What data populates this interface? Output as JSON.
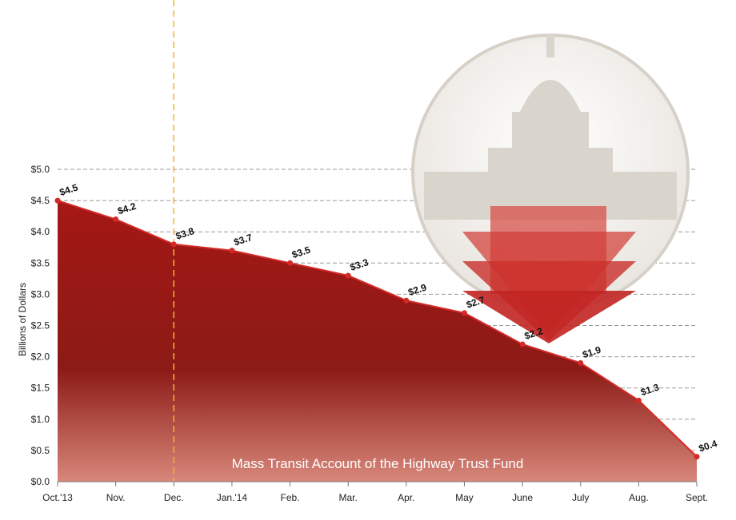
{
  "chart_data": {
    "type": "area",
    "title": "",
    "annotation": "Mass Transit Account of the Highway Trust Fund",
    "xlabel": "",
    "ylabel": "Billions of Dollars",
    "categories": [
      "Oct.'13",
      "Nov.",
      "Dec.",
      "Jan.'14",
      "Feb.",
      "Mar.",
      "Apr.",
      "May",
      "June",
      "July",
      "Aug.",
      "Sept."
    ],
    "values": [
      4.5,
      4.2,
      3.8,
      3.7,
      3.5,
      3.3,
      2.9,
      2.7,
      2.2,
      1.9,
      1.3,
      0.4
    ],
    "data_labels": [
      "$4.5",
      "$4.2",
      "$3.8",
      "$3.7",
      "$3.5",
      "$3.3",
      "$2.9",
      "$2.7",
      "$2.2",
      "$1.9",
      "$1.3",
      "$0.4"
    ],
    "ylim": [
      0,
      5
    ],
    "yticks": [
      "$0.0",
      "$0.5",
      "$1.0",
      "$1.5",
      "$2.0",
      "$2.5",
      "$3.0",
      "$3.5",
      "$4.0",
      "$4.5",
      "$5.0"
    ],
    "grid": true,
    "marker_line_category": "Dec.",
    "colors": {
      "area": "#b3201e",
      "line": "#d42a27",
      "marker_line": "#f0b43c",
      "grid": "#999999"
    }
  }
}
